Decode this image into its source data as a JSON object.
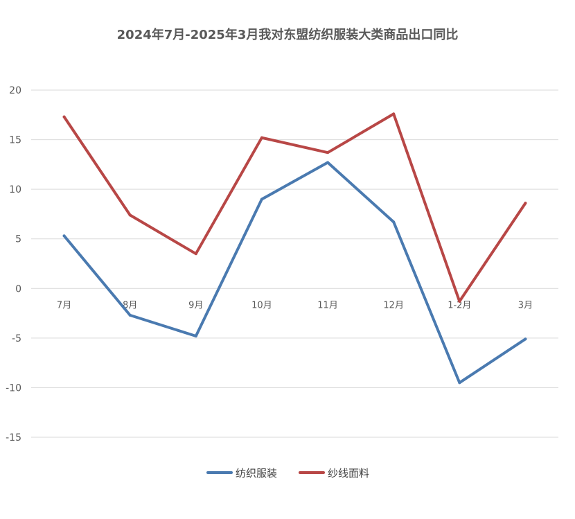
{
  "chart_data": {
    "type": "line",
    "title": "2024年7月-2025年3月我对东盟纺织服装大类商品出口同比",
    "categories": [
      "7月",
      "8月",
      "9月",
      "10月",
      "11月",
      "12月",
      "1-2月",
      "3月"
    ],
    "ylim": [
      -15,
      20
    ],
    "yticks": [
      20,
      15,
      10,
      5,
      0,
      -5,
      -10,
      -15
    ],
    "grid": true,
    "legend_position": "bottom",
    "series": [
      {
        "name": "纺织服装",
        "color": "#4a7ab0",
        "values": [
          5.3,
          -2.7,
          -4.8,
          9.0,
          12.7,
          6.7,
          -9.5,
          -5.1
        ]
      },
      {
        "name": "纱线面料",
        "color": "#b84746",
        "values": [
          17.3,
          7.4,
          3.5,
          15.2,
          13.7,
          17.6,
          -1.3,
          8.6
        ]
      }
    ]
  }
}
